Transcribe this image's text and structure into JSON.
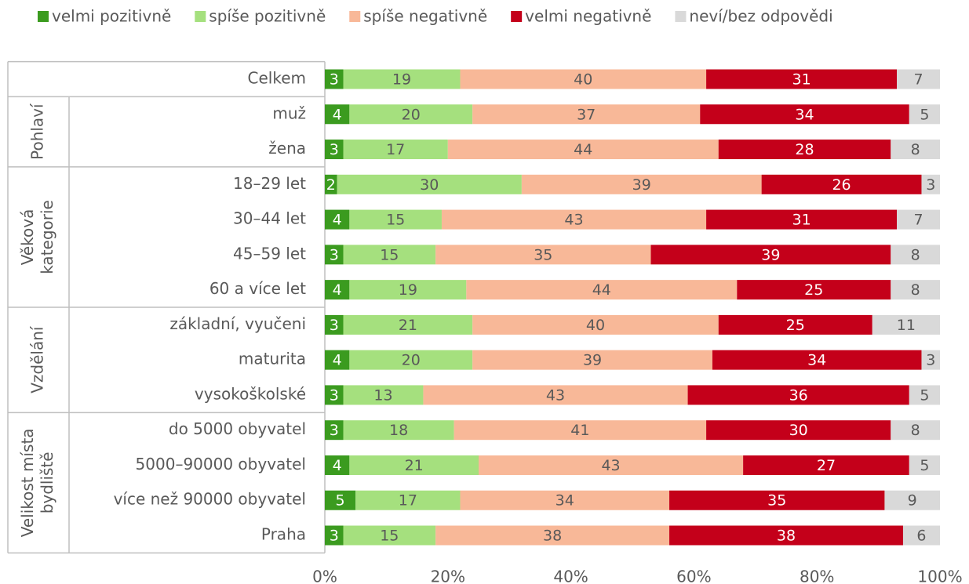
{
  "chart_data": {
    "type": "stacked_bar_horizontal",
    "categories": [
      "Celkem",
      "muž",
      "žena",
      "18–29 let",
      "30–44 let",
      "45–59 let",
      "60 a více let",
      "základní, vyučeni",
      "maturita",
      "vysokoškolské",
      "do 5000 obyvatel",
      "5000–90000 obyvatel",
      "více než 90000 obyvatel",
      "Praha"
    ],
    "groups": [
      {
        "lines": [
          "Pohlaví"
        ],
        "size": 2
      },
      {
        "lines": [
          "Věková",
          "kategorie"
        ],
        "size": 4
      },
      {
        "lines": [
          "Vzdělání"
        ],
        "size": 3
      },
      {
        "lines": [
          "Velikost místa",
          "bydliště"
        ],
        "size": 4
      }
    ],
    "series": [
      {
        "name": "velmi pozitivně",
        "color": "#3b9b1f",
        "label_color": "#ffffff",
        "values": [
          3,
          4,
          3,
          2,
          4,
          3,
          4,
          3,
          4,
          3,
          3,
          4,
          5,
          3
        ]
      },
      {
        "name": "spíše pozitivně",
        "color": "#a5e07e",
        "label_color": "#595959",
        "values": [
          19,
          20,
          17,
          30,
          15,
          15,
          19,
          21,
          20,
          13,
          18,
          21,
          17,
          15
        ]
      },
      {
        "name": "spíše negativně",
        "color": "#f8b898",
        "label_color": "#595959",
        "values": [
          40,
          37,
          44,
          39,
          43,
          35,
          44,
          40,
          39,
          43,
          41,
          43,
          34,
          38
        ]
      },
      {
        "name": "velmi negativně",
        "color": "#c4001a",
        "label_color": "#ffffff",
        "values": [
          31,
          34,
          28,
          26,
          31,
          39,
          25,
          25,
          34,
          36,
          30,
          27,
          35,
          38
        ]
      },
      {
        "name": "neví/bez odpovědi",
        "color": "#d9d9d9",
        "label_color": "#595959",
        "values": [
          7,
          5,
          8,
          3,
          7,
          8,
          8,
          11,
          3,
          5,
          8,
          5,
          9,
          6
        ]
      }
    ],
    "xlim": [
      0,
      100
    ],
    "xticks": [
      {
        "value": 0,
        "label": "0%"
      },
      {
        "value": 20,
        "label": "20%"
      },
      {
        "value": 40,
        "label": "40%"
      },
      {
        "value": 60,
        "label": "60%"
      },
      {
        "value": 80,
        "label": "80%"
      },
      {
        "value": 100,
        "label": "100%"
      }
    ]
  }
}
